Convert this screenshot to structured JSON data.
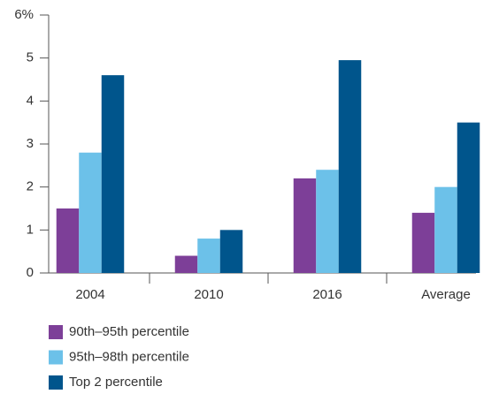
{
  "chart_data": {
    "type": "bar",
    "categories": [
      "2004",
      "2010",
      "2016",
      "Average"
    ],
    "series": [
      {
        "name": "90th–95th percentile",
        "color": "#7d3f98",
        "values": [
          1.5,
          0.4,
          2.2,
          1.4
        ]
      },
      {
        "name": "95th–98th percentile",
        "color": "#6cc1e9",
        "values": [
          2.8,
          0.8,
          2.4,
          2.0
        ]
      },
      {
        "name": "Top 2 percentile",
        "color": "#00558c",
        "values": [
          4.6,
          1.0,
          4.95,
          3.5
        ]
      }
    ],
    "ylim": [
      0,
      6
    ],
    "yticks": [
      0,
      1,
      2,
      3,
      4,
      5,
      {
        "value": 6,
        "label": "6%"
      }
    ],
    "grid": false
  }
}
